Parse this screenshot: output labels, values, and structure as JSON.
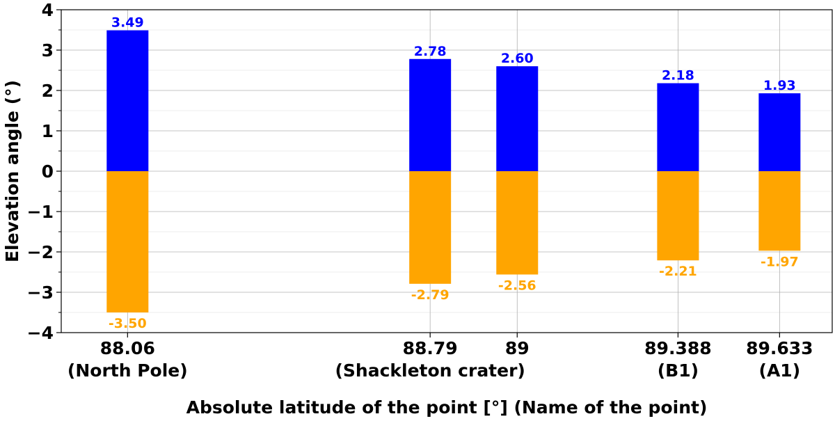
{
  "chart_data": {
    "type": "bar",
    "xlabel": "Absolute latitude of the point [°] (Name of the point)",
    "ylabel": "Elevation angle (°)",
    "ylim": [
      -4,
      4
    ],
    "yticks": [
      -4,
      -3,
      -2,
      -1,
      0,
      1,
      2,
      3,
      4
    ],
    "ytick_labels": [
      "−4",
      "−3",
      "−2",
      "−1",
      "0",
      "1",
      "2",
      "3",
      "4"
    ],
    "xlim": [
      87.9,
      89.76
    ],
    "grid": true,
    "positive_color": "#0000ff",
    "negative_color": "#ffa500",
    "categories": [
      {
        "x": 88.06,
        "label": "88.06",
        "name": "(North Pole)",
        "upper": 3.49,
        "lower": -3.5,
        "upper_label": "3.49",
        "lower_label": "-3.50"
      },
      {
        "x": 88.79,
        "label": "88.79",
        "name": "(Shackleton crater)",
        "upper": 2.78,
        "lower": -2.79,
        "upper_label": "2.78",
        "lower_label": "-2.79"
      },
      {
        "x": 89.0,
        "label": "89",
        "name": "",
        "upper": 2.6,
        "lower": -2.56,
        "upper_label": "2.60",
        "lower_label": "-2.56"
      },
      {
        "x": 89.388,
        "label": "89.388",
        "name": "(B1)",
        "upper": 2.18,
        "lower": -2.21,
        "upper_label": "2.18",
        "lower_label": "-2.21"
      },
      {
        "x": 89.633,
        "label": "89.633",
        "name": "(A1)",
        "upper": 1.93,
        "lower": -1.97,
        "upper_label": "1.93",
        "lower_label": "-1.97"
      }
    ]
  }
}
